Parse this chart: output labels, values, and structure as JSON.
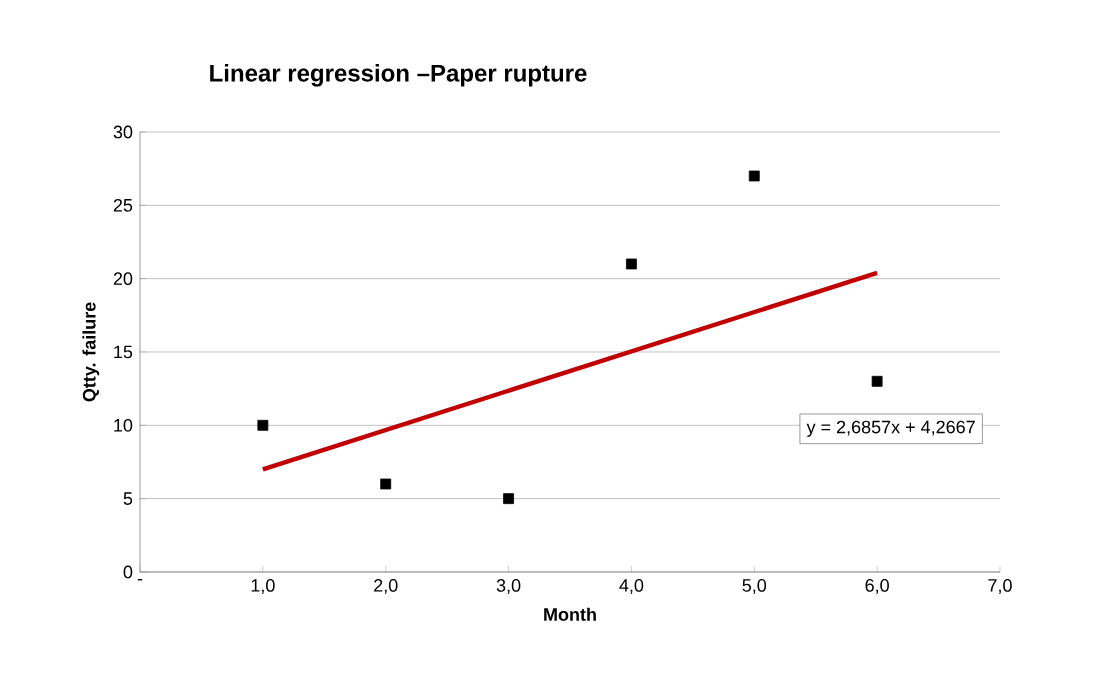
{
  "chart_data": {
    "type": "scatter",
    "title": "Linear regression –Paper rupture",
    "xlabel": "Month",
    "ylabel": "Qtty. failure",
    "x": [
      1,
      2,
      3,
      4,
      5,
      6
    ],
    "series": [
      {
        "color": "#000000",
        "values": [
          10,
          6,
          5,
          21,
          27,
          13
        ],
        "marker": "square"
      },
      {
        "type": "line",
        "color": "#c00000",
        "x": [
          1,
          6
        ],
        "values": [
          7.0,
          20.4
        ],
        "line_style": "solid"
      }
    ],
    "xlim": [
      0,
      7
    ],
    "xticks": [
      {
        "value": 0,
        "label": "-"
      },
      {
        "value": 1,
        "label": "1,0"
      },
      {
        "value": 2,
        "label": "2,0"
      },
      {
        "value": 3,
        "label": "3,0"
      },
      {
        "value": 4,
        "label": "4,0"
      },
      {
        "value": 5,
        "label": "5,0"
      },
      {
        "value": 6,
        "label": "6,0"
      },
      {
        "value": 7,
        "label": "7,0"
      }
    ],
    "ylim": [
      0,
      30
    ],
    "yticks": [
      0,
      5,
      10,
      15,
      20,
      25,
      30
    ],
    "grid": "y",
    "annotations": [
      "y = 2,6857x + 4,2667"
    ]
  }
}
